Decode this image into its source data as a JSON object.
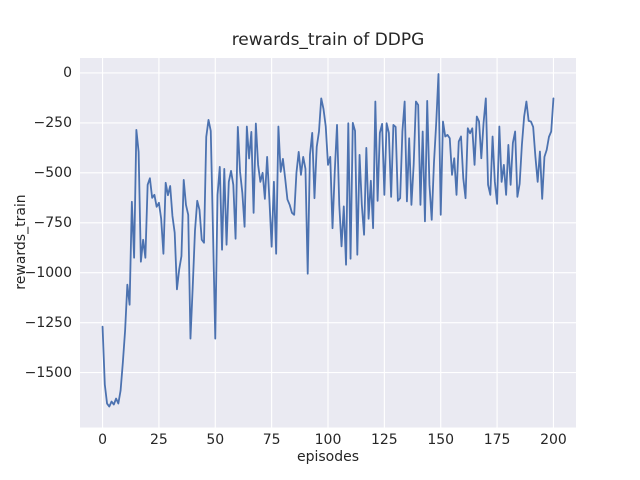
{
  "chart_data": {
    "type": "line",
    "title": "rewards_train of DDPG",
    "xlabel": "episodes",
    "ylabel": "rewards_train",
    "xlim": [
      -10,
      210
    ],
    "ylim": [
      -1775,
      75
    ],
    "grid": true,
    "legend": false,
    "x_ticks": [
      {
        "label": "0",
        "value": 0
      },
      {
        "label": "25",
        "value": 25
      },
      {
        "label": "50",
        "value": 50
      },
      {
        "label": "75",
        "value": 75
      },
      {
        "label": "100",
        "value": 100
      },
      {
        "label": "125",
        "value": 125
      },
      {
        "label": "150",
        "value": 150
      },
      {
        "label": "175",
        "value": 175
      },
      {
        "label": "200",
        "value": 200
      }
    ],
    "y_ticks": [
      {
        "label": "0",
        "value": 0
      },
      {
        "label": "−250",
        "value": -250
      },
      {
        "label": "−500",
        "value": -500
      },
      {
        "label": "−750",
        "value": -750
      },
      {
        "label": "−1000",
        "value": -1000
      },
      {
        "label": "−1250",
        "value": -1250
      },
      {
        "label": "−1500",
        "value": -1500
      }
    ],
    "style": {
      "figure_background": "#FFFFFF",
      "axes_background": "#EAEAF2",
      "grid_color": "#FFFFFF",
      "text_color": "#262626",
      "line_color": "#4C72B0"
    },
    "series": [
      {
        "name": "rewards_train",
        "color": "#4C72B0",
        "x_start": 0,
        "x_step": 1,
        "values": [
          -1270,
          -1560,
          -1655,
          -1670,
          -1645,
          -1660,
          -1630,
          -1655,
          -1590,
          -1450,
          -1290,
          -1060,
          -1160,
          -645,
          -925,
          -285,
          -395,
          -945,
          -835,
          -925,
          -560,
          -527,
          -625,
          -610,
          -670,
          -650,
          -730,
          -905,
          -550,
          -612,
          -566,
          -716,
          -800,
          -1083,
          -983,
          -917,
          -535,
          -660,
          -710,
          -1330,
          -1070,
          -790,
          -640,
          -685,
          -835,
          -850,
          -320,
          -235,
          -290,
          -800,
          -1330,
          -610,
          -470,
          -885,
          -480,
          -860,
          -545,
          -490,
          -560,
          -830,
          -270,
          -495,
          -600,
          -770,
          -268,
          -428,
          -295,
          -700,
          -253,
          -460,
          -545,
          -500,
          -630,
          -420,
          -633,
          -870,
          -545,
          -905,
          -268,
          -495,
          -430,
          -528,
          -633,
          -660,
          -700,
          -710,
          -500,
          -395,
          -510,
          -420,
          -480,
          -1005,
          -410,
          -300,
          -627,
          -370,
          -293,
          -127,
          -180,
          -268,
          -460,
          -420,
          -777,
          -493,
          -260,
          -660,
          -868,
          -668,
          -960,
          -252,
          -930,
          -250,
          -290,
          -910,
          -410,
          -660,
          -810,
          -375,
          -730,
          -540,
          -777,
          -143,
          -640,
          -300,
          -255,
          -610,
          -252,
          -300,
          -620,
          -260,
          -270,
          -640,
          -627,
          -293,
          -143,
          -643,
          -327,
          -660,
          -460,
          -143,
          -160,
          -660,
          -293,
          -743,
          -140,
          -560,
          -735,
          -450,
          -250,
          -5,
          -710,
          -243,
          -318,
          -310,
          -327,
          -510,
          -427,
          -610,
          -343,
          -318,
          -527,
          -627,
          -277,
          -302,
          -277,
          -460,
          -218,
          -243,
          -427,
          -250,
          -127,
          -560,
          -610,
          -318,
          -545,
          -655,
          -268,
          -545,
          -460,
          -610,
          -360,
          -560,
          -350,
          -293,
          -620,
          -555,
          -360,
          -218,
          -143,
          -240,
          -243,
          -270,
          -420,
          -545,
          -393,
          -630,
          -420,
          -385,
          -320,
          -293,
          -127
        ]
      }
    ]
  }
}
